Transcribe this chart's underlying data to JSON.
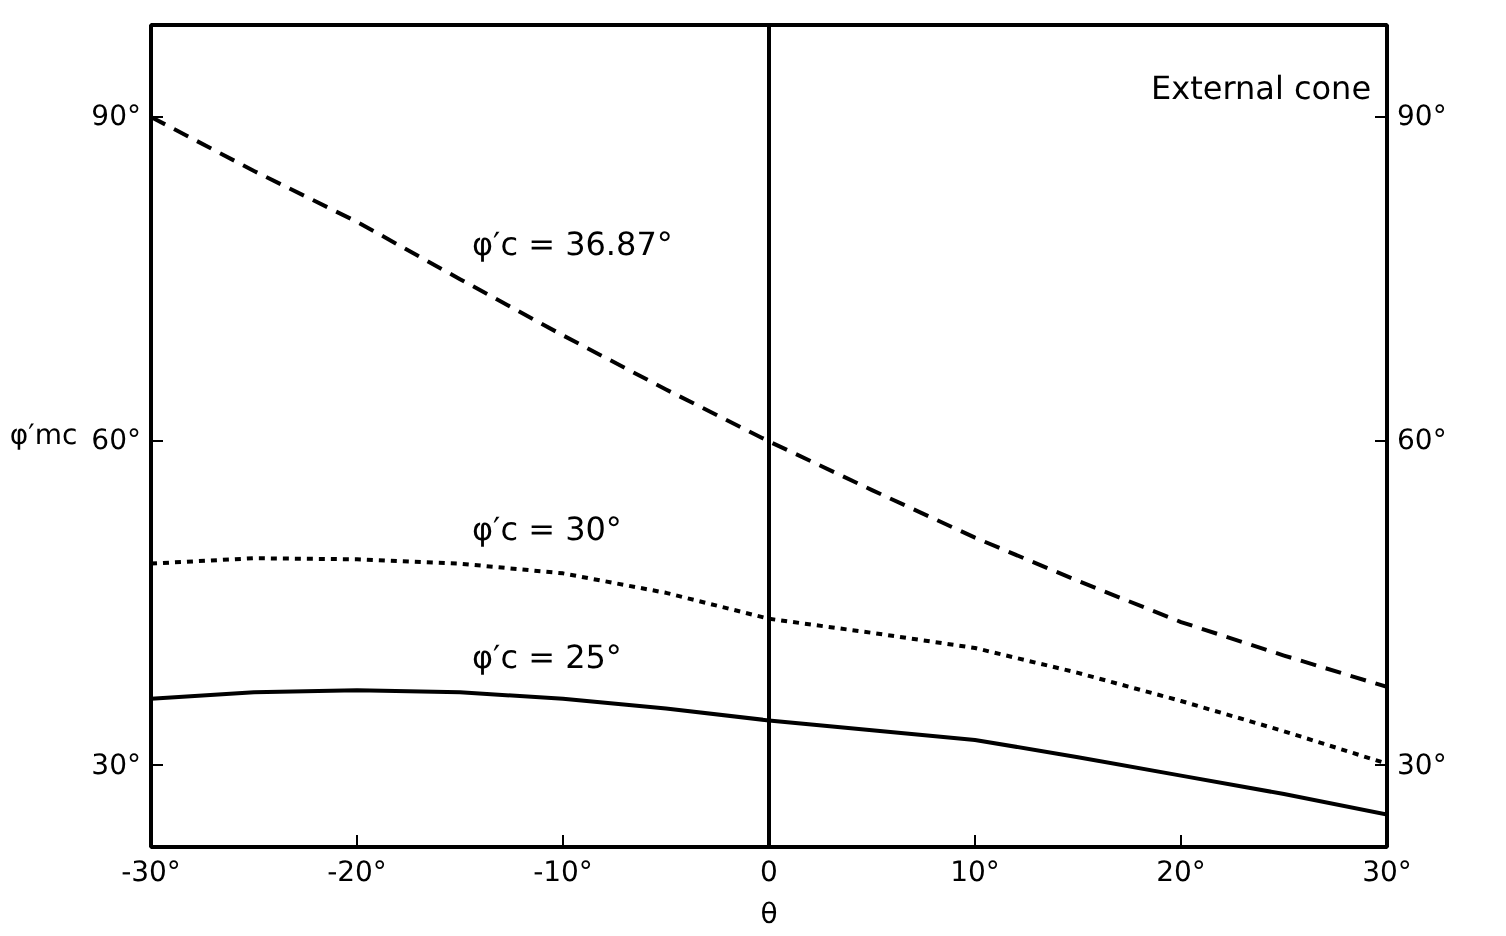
{
  "chart_data": {
    "type": "line",
    "ylabel": "φ′mc",
    "xlabel": "θ",
    "x": [
      -30,
      -25,
      -20,
      -15,
      -10,
      -5,
      0,
      5,
      10,
      15,
      20,
      25,
      30
    ],
    "series": [
      {
        "name": "φ′c  = 36.87°",
        "color": "#000000",
        "line_style": "dashed",
        "values": [
          90,
          85.0,
          80.3,
          75.0,
          69.8,
          64.8,
          60,
          55.5,
          51.1,
          47.1,
          43.3,
          40.2,
          37.3
        ]
      },
      {
        "name": "φ′c = 30°",
        "color": "#000000",
        "line_style": "dotted",
        "values": [
          48.7,
          49.2,
          49.1,
          48.7,
          47.8,
          46.0,
          43.6,
          42.3,
          40.9,
          38.6,
          36.0,
          33.2,
          30.2
        ]
      },
      {
        "name": "φ′c  = 25°",
        "color": "#000000",
        "line_style": "solid",
        "values": [
          36.2,
          36.8,
          37.0,
          36.8,
          36.2,
          35.3,
          34.2,
          33.3,
          32.4,
          30.8,
          29.1,
          27.4,
          25.5
        ]
      }
    ],
    "annotations": [
      "External cone"
    ],
    "ref_lines": [
      {
        "axis": "x",
        "value": 0,
        "color": "#000000",
        "line_style": "solid"
      }
    ],
    "xlim": [
      -30,
      30
    ],
    "xticks": [
      {
        "value": -30,
        "label": "-30°"
      },
      {
        "value": -20,
        "label": "-20°"
      },
      {
        "value": -10,
        "label": "-10°"
      },
      0,
      {
        "value": 10,
        "label": "10°"
      },
      {
        "value": 20,
        "label": "20°"
      },
      {
        "value": 30,
        "label": "30°"
      }
    ],
    "ylim": [
      22.5,
      98.5
    ],
    "yticks": [
      {
        "value": 30,
        "label": "30°"
      },
      {
        "value": 60,
        "label": "60°"
      },
      {
        "value": 90,
        "label": "90°"
      }
    ],
    "y2lim": [
      22.5,
      98.5
    ],
    "y2ticks": [
      {
        "value": 30,
        "label": "30°"
      },
      {
        "value": 60,
        "label": "60°"
      },
      {
        "value": 90,
        "label": "90°"
      }
    ],
    "grid": false,
    "legend": false,
    "marker": "none"
  }
}
